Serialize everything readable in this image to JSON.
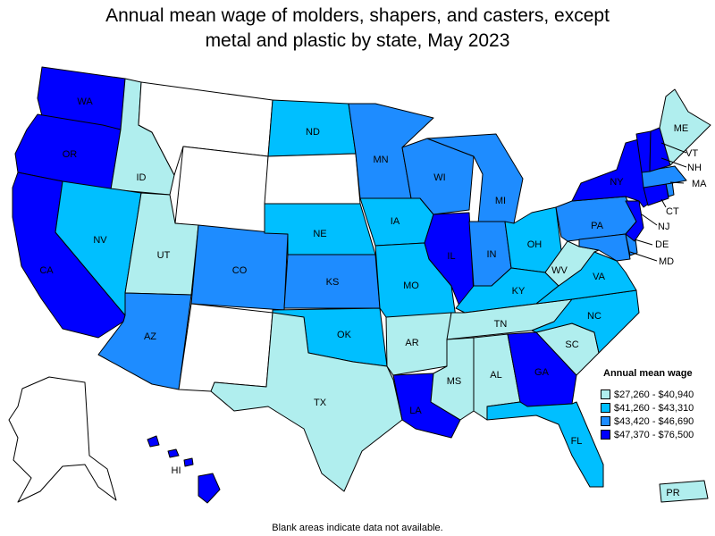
{
  "title_lines": [
    "Annual mean wage of molders, shapers, and casters, except",
    "metal and plastic by state, May 2023"
  ],
  "legend": {
    "title": "Annual mean wage",
    "bins": [
      {
        "label": "$27,260 - $40,940",
        "color": "#b0eeee"
      },
      {
        "label": "$41,260 - $43,310",
        "color": "#00bfff"
      },
      {
        "label": "$43,420 - $46,690",
        "color": "#1e8cff"
      },
      {
        "label": "$47,370 - $76,500",
        "color": "#0000ff"
      }
    ],
    "no_data_color": "#ffffff"
  },
  "footnote": "Blank areas indicate data not available.",
  "states": {
    "WA": {
      "label": "WA",
      "bin": 3
    },
    "OR": {
      "label": "OR",
      "bin": 3
    },
    "CA": {
      "label": "CA",
      "bin": 3
    },
    "ID": {
      "label": "ID",
      "bin": 0
    },
    "NV": {
      "label": "NV",
      "bin": 1
    },
    "MT": {
      "label": "",
      "bin": null
    },
    "WY": {
      "label": "",
      "bin": null
    },
    "UT": {
      "label": "UT",
      "bin": 0
    },
    "AZ": {
      "label": "AZ",
      "bin": 2
    },
    "CO": {
      "label": "CO",
      "bin": 2
    },
    "NM": {
      "label": "",
      "bin": null
    },
    "ND": {
      "label": "ND",
      "bin": 1
    },
    "SD": {
      "label": "",
      "bin": null
    },
    "NE": {
      "label": "NE",
      "bin": 1
    },
    "KS": {
      "label": "KS",
      "bin": 2
    },
    "OK": {
      "label": "OK",
      "bin": 1
    },
    "TX": {
      "label": "TX",
      "bin": 0
    },
    "MN": {
      "label": "MN",
      "bin": 2
    },
    "IA": {
      "label": "IA",
      "bin": 1
    },
    "MO": {
      "label": "MO",
      "bin": 1
    },
    "AR": {
      "label": "AR",
      "bin": 0
    },
    "LA": {
      "label": "LA",
      "bin": 3
    },
    "WI": {
      "label": "WI",
      "bin": 2
    },
    "IL": {
      "label": "IL",
      "bin": 3
    },
    "MI": {
      "label": "MI",
      "bin": 2
    },
    "IN": {
      "label": "IN",
      "bin": 2
    },
    "OH": {
      "label": "OH",
      "bin": 1
    },
    "KY": {
      "label": "KY",
      "bin": 1
    },
    "TN": {
      "label": "TN",
      "bin": 0
    },
    "MS": {
      "label": "MS",
      "bin": 0
    },
    "AL": {
      "label": "AL",
      "bin": 0
    },
    "GA": {
      "label": "GA",
      "bin": 3
    },
    "FL": {
      "label": "FL",
      "bin": 1
    },
    "SC": {
      "label": "SC",
      "bin": 0
    },
    "NC": {
      "label": "NC",
      "bin": 1
    },
    "VA": {
      "label": "VA",
      "bin": 1
    },
    "WV": {
      "label": "WV",
      "bin": 0
    },
    "PA": {
      "label": "PA",
      "bin": 2
    },
    "NY": {
      "label": "NY",
      "bin": 3
    },
    "NJ": {
      "label": "NJ",
      "bin": 3
    },
    "DE": {
      "label": "DE",
      "bin": 2
    },
    "MD": {
      "label": "MD",
      "bin": 2
    },
    "CT": {
      "label": "CT",
      "bin": 3
    },
    "MA": {
      "label": "MA",
      "bin": 2
    },
    "VT": {
      "label": "VT",
      "bin": 3
    },
    "NH": {
      "label": "NH",
      "bin": 3
    },
    "ME": {
      "label": "ME",
      "bin": 0
    },
    "RI": {
      "label": "",
      "bin": 2
    },
    "AK": {
      "label": "",
      "bin": null
    },
    "HI": {
      "label": "HI",
      "bin": 3
    },
    "PR": {
      "label": "PR",
      "bin": 0
    }
  }
}
